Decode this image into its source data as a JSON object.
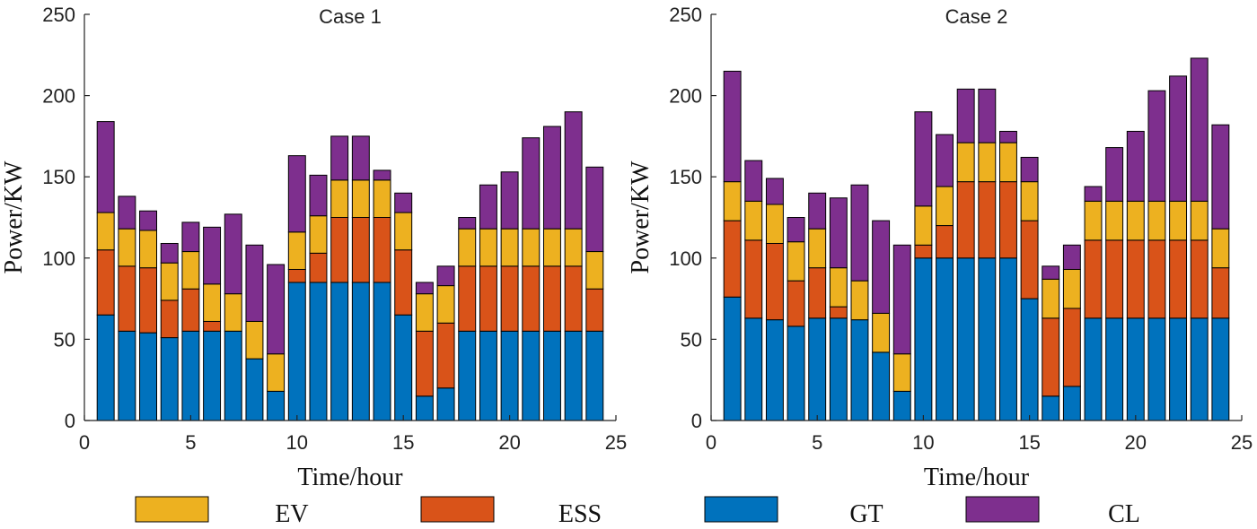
{
  "chart_data": [
    {
      "type": "bar",
      "stacked": true,
      "title": "Case 1",
      "xlabel": "Time/hour",
      "ylabel": "Power/KW",
      "xlim": [
        0,
        25
      ],
      "ylim": [
        0,
        250
      ],
      "xticks": [
        0,
        5,
        10,
        15,
        20,
        25
      ],
      "yticks": [
        0,
        50,
        100,
        150,
        200,
        250
      ],
      "x": [
        1,
        2,
        3,
        4,
        5,
        6,
        7,
        8,
        9,
        10,
        11,
        12,
        13,
        14,
        15,
        16,
        17,
        18,
        19,
        20,
        21,
        22,
        23,
        24
      ],
      "series": [
        {
          "name": "GT",
          "values": [
            65,
            55,
            54,
            51,
            55,
            55,
            55,
            38,
            18,
            85,
            85,
            85,
            85,
            85,
            65,
            15,
            20,
            55,
            55,
            55,
            55,
            55,
            55,
            55
          ]
        },
        {
          "name": "ESS",
          "values": [
            40,
            40,
            40,
            23,
            26,
            6,
            0,
            0,
            0,
            8,
            18,
            40,
            40,
            40,
            40,
            40,
            40,
            40,
            40,
            40,
            40,
            40,
            40,
            26
          ]
        },
        {
          "name": "EV",
          "values": [
            23,
            23,
            23,
            23,
            23,
            23,
            23,
            23,
            23,
            23,
            23,
            23,
            23,
            23,
            23,
            23,
            23,
            23,
            23,
            23,
            23,
            23,
            23,
            23
          ]
        },
        {
          "name": "CL",
          "values": [
            56,
            20,
            12,
            12,
            18,
            35,
            49,
            47,
            55,
            47,
            25,
            27,
            27,
            6,
            12,
            7,
            12,
            7,
            27,
            35,
            56,
            63,
            72,
            52
          ]
        }
      ]
    },
    {
      "type": "bar",
      "stacked": true,
      "title": "Case 2",
      "xlabel": "Time/hour",
      "ylabel": "Power/KW",
      "xlim": [
        0,
        25
      ],
      "ylim": [
        0,
        250
      ],
      "xticks": [
        0,
        5,
        10,
        15,
        20,
        25
      ],
      "yticks": [
        0,
        50,
        100,
        150,
        200,
        250
      ],
      "x": [
        1,
        2,
        3,
        4,
        5,
        6,
        7,
        8,
        9,
        10,
        11,
        12,
        13,
        14,
        15,
        16,
        17,
        18,
        19,
        20,
        21,
        22,
        23,
        24
      ],
      "series": [
        {
          "name": "GT",
          "values": [
            76,
            63,
            62,
            58,
            63,
            63,
            62,
            42,
            18,
            100,
            100,
            100,
            100,
            100,
            75,
            15,
            21,
            63,
            63,
            63,
            63,
            63,
            63,
            63
          ]
        },
        {
          "name": "ESS",
          "values": [
            47,
            48,
            47,
            28,
            31,
            7,
            0,
            0,
            0,
            8,
            20,
            47,
            47,
            47,
            48,
            48,
            48,
            48,
            48,
            48,
            48,
            48,
            48,
            31
          ]
        },
        {
          "name": "EV",
          "values": [
            24,
            24,
            24,
            24,
            24,
            24,
            24,
            24,
            23,
            24,
            24,
            24,
            24,
            24,
            24,
            24,
            24,
            24,
            24,
            24,
            24,
            24,
            24,
            24
          ]
        },
        {
          "name": "CL",
          "values": [
            68,
            25,
            16,
            15,
            22,
            43,
            59,
            57,
            67,
            58,
            32,
            33,
            33,
            7,
            15,
            8,
            15,
            9,
            33,
            43,
            68,
            77,
            88,
            64
          ]
        }
      ]
    }
  ],
  "legend": {
    "placement": "bottom",
    "items": [
      {
        "name": "EV",
        "color": "#EDB120"
      },
      {
        "name": "ESS",
        "color": "#D95319"
      },
      {
        "name": "GT",
        "color": "#0072BD"
      },
      {
        "name": "CL",
        "color": "#7E2F8E"
      }
    ]
  },
  "colors": {
    "GT": "#0072BD",
    "ESS": "#D95319",
    "EV": "#EDB120",
    "CL": "#7E2F8E"
  }
}
